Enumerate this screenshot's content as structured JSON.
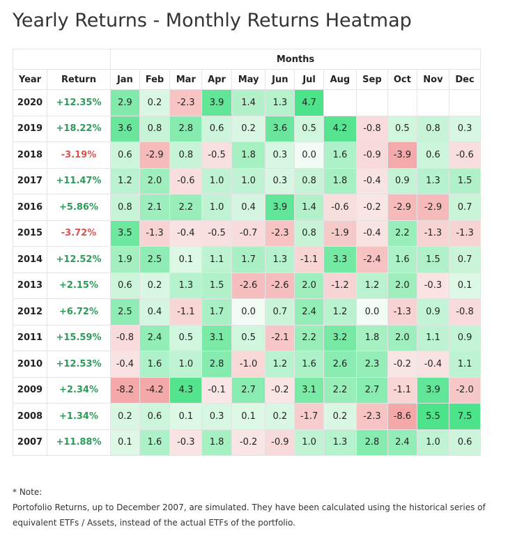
{
  "header": {
    "title": "Yearly Returns - Monthly Returns Heatmap"
  },
  "table": {
    "group_header": "Months",
    "columns": [
      "Year",
      "Return",
      "Jan",
      "Feb",
      "Mar",
      "Apr",
      "May",
      "Jun",
      "Jul",
      "Aug",
      "Sep",
      "Oct",
      "Nov",
      "Dec"
    ],
    "rows": [
      {
        "year": "2020",
        "return": "+12.35%",
        "months": [
          "2.9",
          "0.2",
          "-2.3",
          "3.9",
          "1.4",
          "1.3",
          "4.7"
        ]
      },
      {
        "year": "2019",
        "return": "+18.22%",
        "months": [
          "3.6",
          "0.8",
          "2.8",
          "0.6",
          "0.2",
          "3.6",
          "0.5",
          "4.2",
          "-0.8",
          "0.5",
          "0.8",
          "0.3"
        ]
      },
      {
        "year": "2018",
        "return": "-3.19%",
        "months": [
          "0.6",
          "-2.9",
          "0.8",
          "-0.5",
          "1.8",
          "0.3",
          "0.0",
          "1.6",
          "-0.9",
          "-3.9",
          "0.6",
          "-0.6"
        ]
      },
      {
        "year": "2017",
        "return": "+11.47%",
        "months": [
          "1.2",
          "2.0",
          "-0.6",
          "1.0",
          "1.0",
          "0.3",
          "0.8",
          "1.8",
          "-0.4",
          "0.9",
          "1.3",
          "1.5"
        ]
      },
      {
        "year": "2016",
        "return": "+5.86%",
        "months": [
          "0.8",
          "2.1",
          "2.2",
          "1.0",
          "0.4",
          "3.9",
          "1.4",
          "-0.6",
          "-0.2",
          "-2.9",
          "-2.9",
          "0.7"
        ]
      },
      {
        "year": "2015",
        "return": "-3.72%",
        "months": [
          "3.5",
          "-1.3",
          "-0.4",
          "-0.5",
          "-0.7",
          "-2.3",
          "0.8",
          "-1.9",
          "-0.4",
          "2.2",
          "-1.3",
          "-1.3"
        ]
      },
      {
        "year": "2014",
        "return": "+12.52%",
        "months": [
          "1.9",
          "2.5",
          "0.1",
          "1.1",
          "1.7",
          "1.3",
          "-1.1",
          "3.3",
          "-2.4",
          "1.6",
          "1.5",
          "0.7"
        ]
      },
      {
        "year": "2013",
        "return": "+2.15%",
        "months": [
          "0.6",
          "0.2",
          "1.3",
          "1.5",
          "-2.6",
          "-2.6",
          "2.0",
          "-1.2",
          "1.2",
          "2.0",
          "-0.3",
          "0.1"
        ]
      },
      {
        "year": "2012",
        "return": "+6.72%",
        "months": [
          "2.5",
          "0.4",
          "-1.1",
          "1.7",
          "0.0",
          "0.7",
          "2.4",
          "1.2",
          "0.0",
          "-1.3",
          "0.9",
          "-0.8"
        ]
      },
      {
        "year": "2011",
        "return": "+15.59%",
        "months": [
          "-0.8",
          "2.4",
          "0.5",
          "3.1",
          "0.5",
          "-2.1",
          "2.2",
          "3.2",
          "1.8",
          "2.0",
          "1.1",
          "0.9"
        ]
      },
      {
        "year": "2010",
        "return": "+12.53%",
        "months": [
          "-0.4",
          "1.6",
          "1.0",
          "2.8",
          "-1.0",
          "1.2",
          "1.6",
          "2.6",
          "2.3",
          "-0.2",
          "-0.4",
          "1.1"
        ]
      },
      {
        "year": "2009",
        "return": "+2.34%",
        "months": [
          "-8.2",
          "-4.2",
          "4.3",
          "-0.1",
          "2.7",
          "-0.2",
          "3.1",
          "2.2",
          "2.7",
          "-1.1",
          "3.9",
          "-2.0"
        ]
      },
      {
        "year": "2008",
        "return": "+1.34%",
        "months": [
          "0.2",
          "0.6",
          "0.1",
          "0.3",
          "0.1",
          "0.2",
          "-1.7",
          "0.2",
          "-2.3",
          "-8.6",
          "5.5",
          "7.5"
        ]
      },
      {
        "year": "2007",
        "return": "+11.88%",
        "months": [
          "0.1",
          "1.6",
          "-0.3",
          "1.8",
          "-0.2",
          "-0.9",
          "1.0",
          "1.3",
          "2.8",
          "2.4",
          "1.0",
          "0.6"
        ]
      }
    ]
  },
  "note": {
    "label": "* Note:",
    "text": "Portofolio Returns, up to December 2007, are simulated. They have been calculated using the historical series of equivalent ETFs / Assets, instead of the actual ETFs of the portfolio."
  }
}
